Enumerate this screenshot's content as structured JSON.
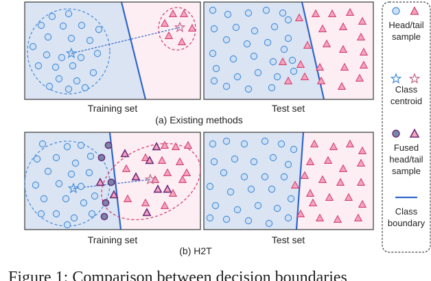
{
  "colors": {
    "head_region": "#dbe4f3",
    "tail_region": "#fceef3",
    "head_sample": "#4a90d9",
    "tail_fill": "#f5a3bf",
    "tail_stroke": "#d2406e",
    "boundary": "#2f65c8",
    "centroid_link": "#2f65c8",
    "fused_head_fill": "#7a86a8",
    "fused_stroke": "#6b2a7a"
  },
  "icons": [
    "head-circle-icon",
    "tail-triangle-icon",
    "head-star-icon",
    "tail-star-icon",
    "fused-head-icon",
    "fused-tail-icon",
    "boundary-line-icon"
  ],
  "panels": {
    "a_train_label": "Training set",
    "a_test_label": "Test set",
    "a_caption": "(a) Existing methods",
    "b_train_label": "Training set",
    "b_test_label": "Test set",
    "b_caption": "(b) H2T"
  },
  "legend": {
    "head_tail_sample": [
      "Head/tail",
      "sample"
    ],
    "class_centroid": [
      "Class",
      "centroid"
    ],
    "fused_sample": [
      "Fused",
      "head/tail",
      "sample"
    ],
    "class_boundary": [
      "Class",
      "boundary"
    ]
  },
  "figure_caption": "Figure 1: Comparison between decision boundaries"
}
